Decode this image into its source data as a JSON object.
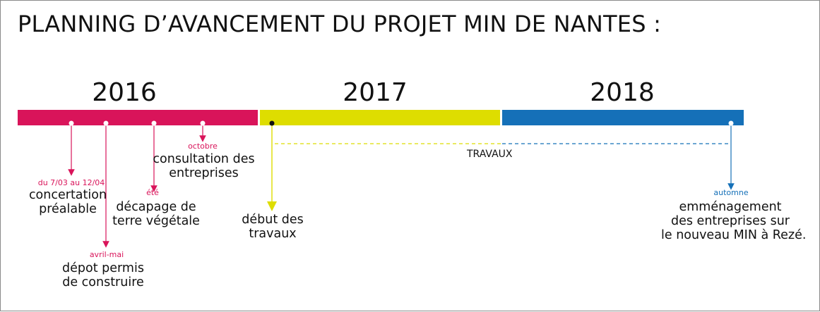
{
  "title": "PLANNING D’AVANCEMENT DU PROJET MIN DE NANTES :",
  "colors": {
    "magenta": "#d9145a",
    "yellow": "#dedd00",
    "blue": "#1570b8",
    "text": "#111111"
  },
  "years": [
    {
      "label": "2016",
      "color": "#d9145a"
    },
    {
      "label": "2017",
      "color": "#dedd00"
    },
    {
      "label": "2018",
      "color": "#1570b8"
    }
  ],
  "work_label": "TRAVAUX",
  "events": {
    "concertation": {
      "date": "du 7/03 au 12/04",
      "line1": "concertation",
      "line2": "préalable"
    },
    "permis": {
      "date": "avril-mai",
      "line1": "dépot permis",
      "line2": "de construire"
    },
    "decapage": {
      "date": "été",
      "line1": "décapage de",
      "line2": "terre végétale"
    },
    "consultation": {
      "date": "octobre",
      "line1": "consultation des",
      "line2": "entreprises"
    },
    "debut": {
      "line1": "début des",
      "line2": "travaux"
    },
    "emmenagement": {
      "date": "automne",
      "line1": "emménagement",
      "line2": "des entreprises sur",
      "line3": "le nouveau MIN à Rezé."
    }
  }
}
